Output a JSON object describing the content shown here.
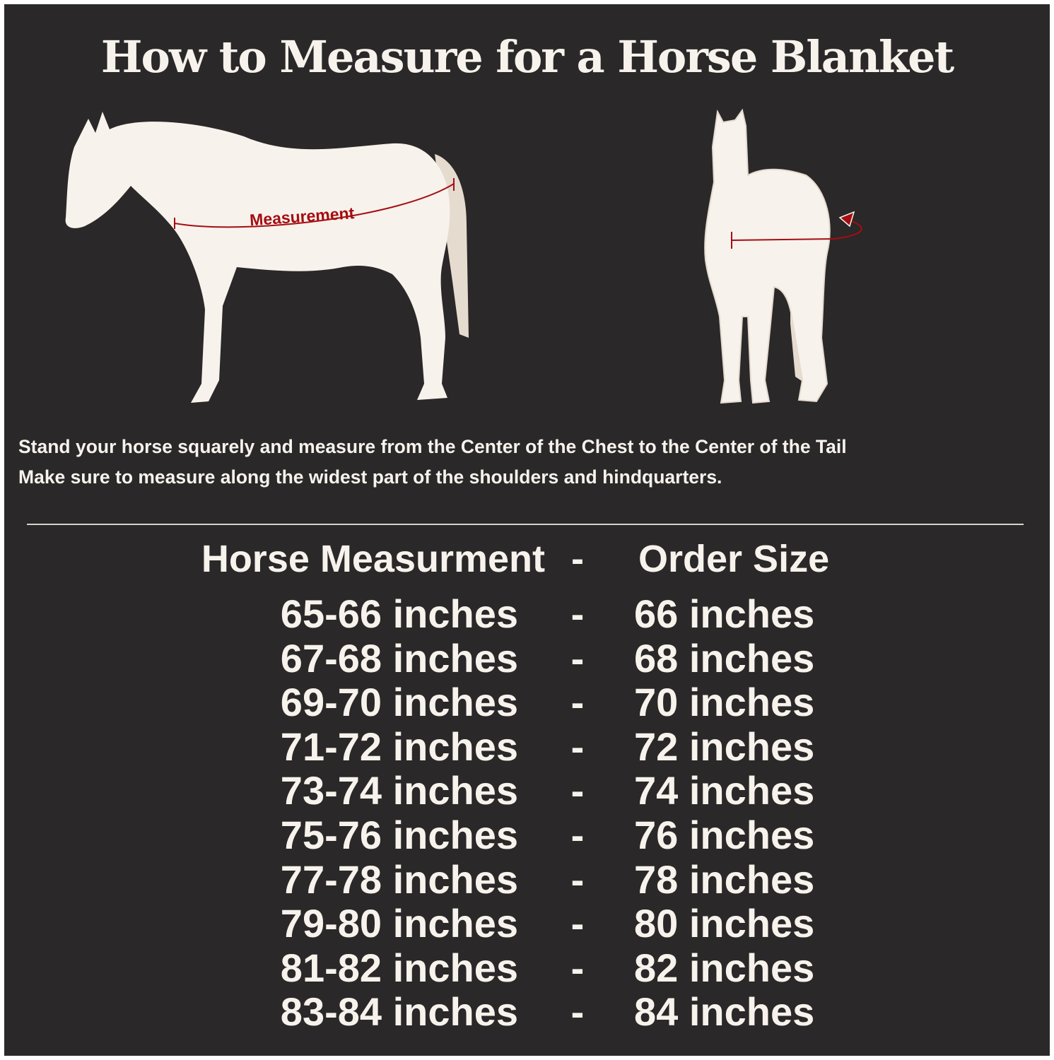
{
  "title": "How to Measure for a Horse Blanket",
  "diagram": {
    "side_label": "Measurement",
    "accent_color": "#a50d12",
    "horse_color": "#f7f2ec",
    "background": "#2a2828"
  },
  "instructions": [
    "Stand your horse squarely and measure from the Center of the Chest to the Center of the Tail",
    "Make sure to measure along the widest part of the shoulders and hindquarters."
  ],
  "table": {
    "headers": {
      "measurement": "Horse Measurment",
      "separator": "-",
      "size": "Order Size"
    },
    "rows": [
      {
        "measurement": "65-66 inches",
        "separator": "-",
        "size": "66 inches"
      },
      {
        "measurement": "67-68 inches",
        "separator": "-",
        "size": "68 inches"
      },
      {
        "measurement": "69-70 inches",
        "separator": "-",
        "size": "70 inches"
      },
      {
        "measurement": "71-72 inches",
        "separator": "-",
        "size": "72 inches"
      },
      {
        "measurement": "73-74 inches",
        "separator": "-",
        "size": "74 inches"
      },
      {
        "measurement": "75-76 inches",
        "separator": "-",
        "size": "76 inches"
      },
      {
        "measurement": "77-78 inches",
        "separator": "-",
        "size": "78 inches"
      },
      {
        "measurement": "79-80 inches",
        "separator": "-",
        "size": "80 inches"
      },
      {
        "measurement": "81-82 inches",
        "separator": "-",
        "size": "82 inches"
      },
      {
        "measurement": "83-84 inches",
        "separator": "-",
        "size": "84 inches"
      }
    ]
  }
}
